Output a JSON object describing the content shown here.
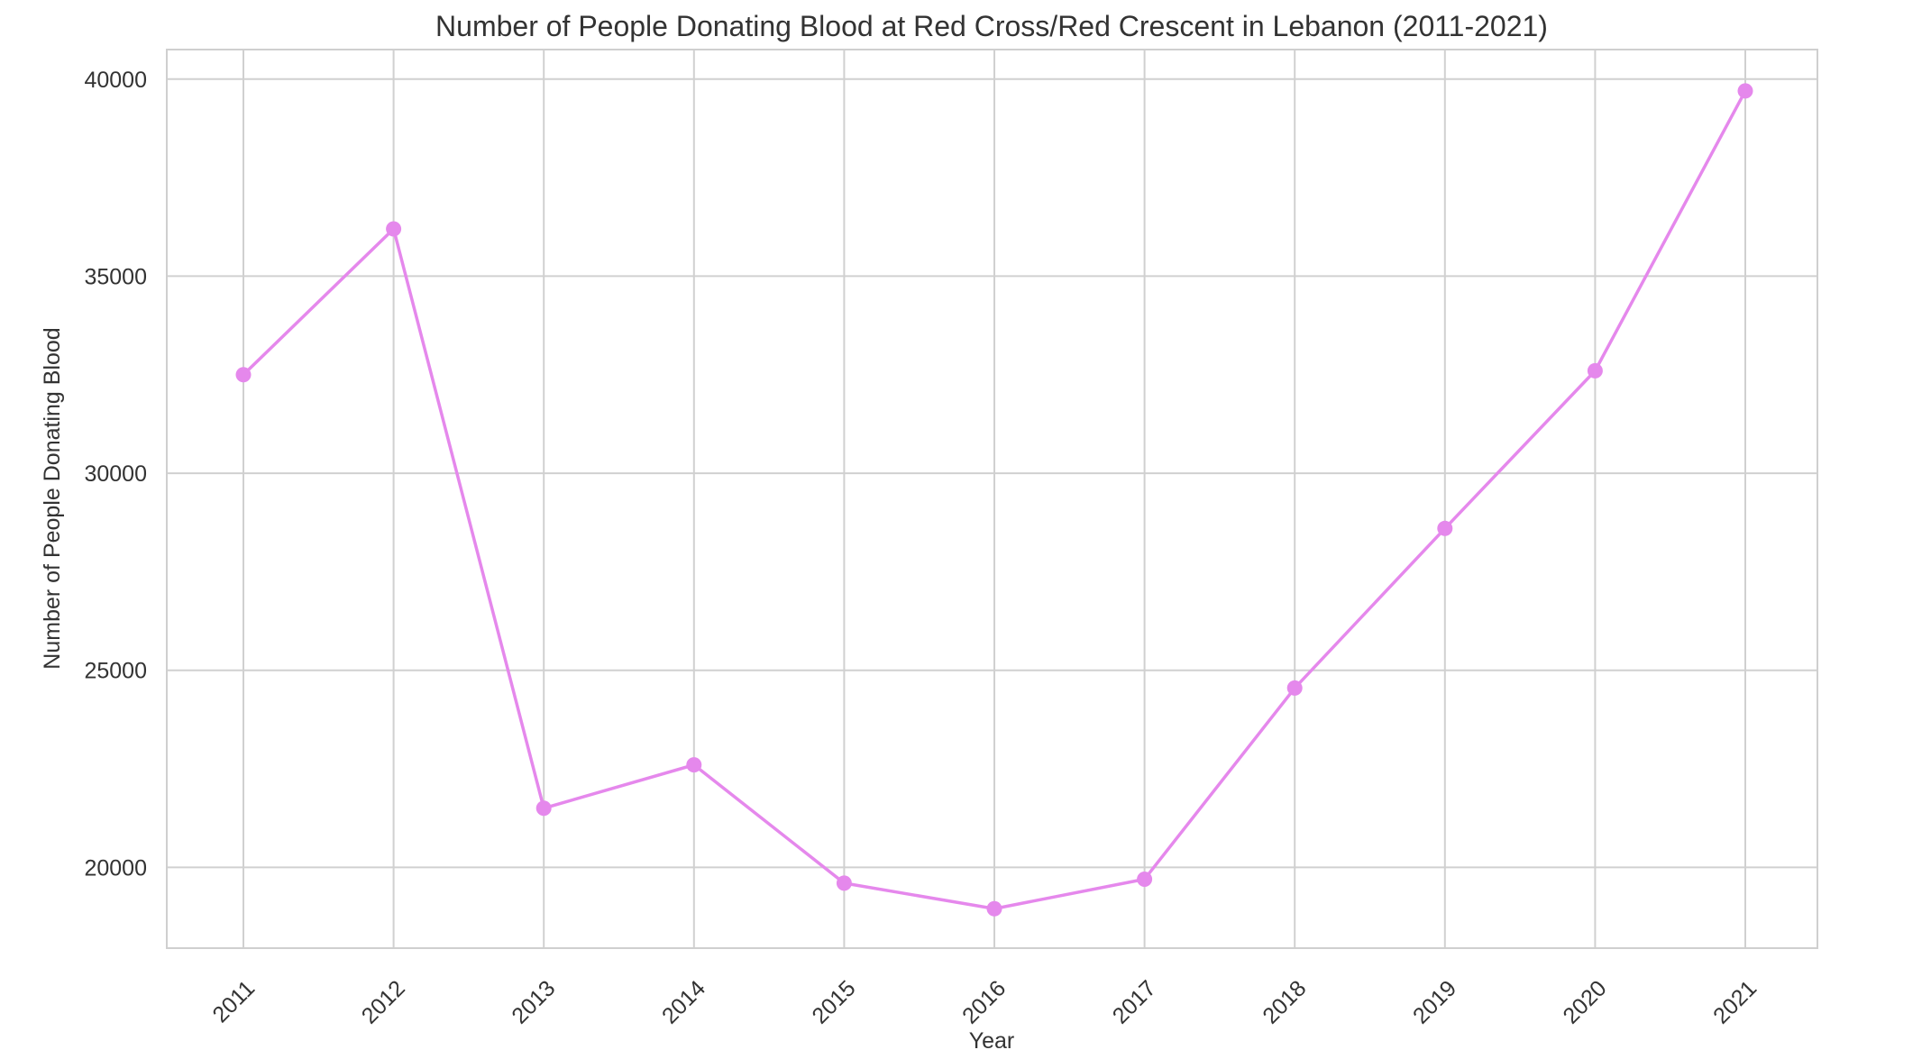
{
  "chart_data": {
    "type": "line",
    "title": "Number of People Donating Blood at Red Cross/Red Crescent in Lebanon (2011-2021)",
    "xlabel": "Year",
    "ylabel": "Number of People Donating Blood",
    "categories": [
      "2011",
      "2012",
      "2013",
      "2014",
      "2015",
      "2016",
      "2017",
      "2018",
      "2019",
      "2020",
      "2021"
    ],
    "series": [
      {
        "values": [
          32500,
          36200,
          21500,
          22600,
          19600,
          18950,
          19700,
          24550,
          28600,
          32600,
          39700
        ],
        "color": "#e588ec",
        "marker": "circle"
      }
    ],
    "ylim": [
      17950,
      40750
    ],
    "yticks": [
      20000,
      25000,
      30000,
      35000,
      40000
    ],
    "grid": true,
    "xtick_rotation": -45,
    "legend": "none"
  }
}
